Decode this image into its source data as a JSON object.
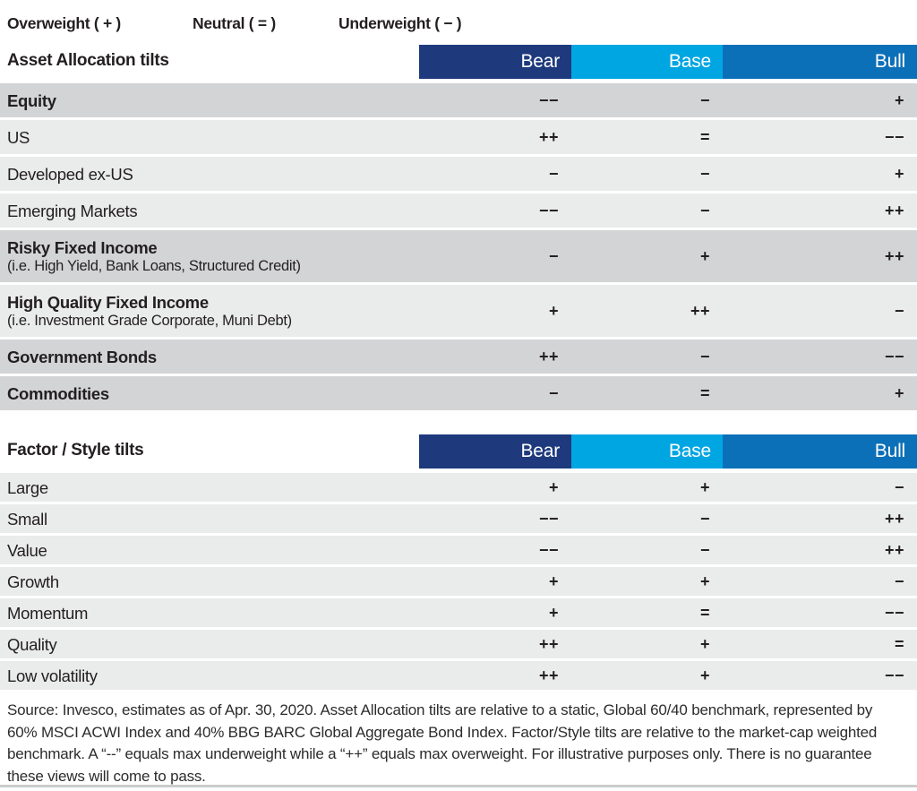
{
  "legend": {
    "overweight": "Overweight ( + )",
    "neutral": "Neutral ( = )",
    "underweight": "Underweight ( − )"
  },
  "colors": {
    "bear": "#1e3a7d",
    "base": "#00a6e2",
    "bull": "#0c70b8",
    "row_dark": "#d3d4d6",
    "row_light": "#eaebeb",
    "header_text": "#ffffff",
    "body_text": "#231f20"
  },
  "tables": [
    {
      "title": "Asset Allocation tilts",
      "columns": [
        "Bear",
        "Base",
        "Bull"
      ],
      "rows": [
        {
          "label": "Equity",
          "sub": "",
          "bold": true,
          "shade": "dark",
          "values": [
            "−−",
            "−",
            "+"
          ]
        },
        {
          "label": "US",
          "sub": "",
          "bold": false,
          "shade": "light",
          "values": [
            "++",
            "=",
            "−−"
          ]
        },
        {
          "label": "Developed ex-US",
          "sub": "",
          "bold": false,
          "shade": "light",
          "values": [
            "−",
            "−",
            "+"
          ]
        },
        {
          "label": "Emerging Markets",
          "sub": "",
          "bold": false,
          "shade": "light",
          "values": [
            "−−",
            "−",
            "++"
          ]
        },
        {
          "label": "Risky Fixed Income",
          "sub": "(i.e. High Yield, Bank Loans, Structured Credit)",
          "bold": true,
          "shade": "dark",
          "values": [
            "−",
            "+",
            "++"
          ]
        },
        {
          "label": "High Quality Fixed Income",
          "sub": "(i.e. Investment Grade Corporate, Muni Debt)",
          "bold": true,
          "shade": "light",
          "values": [
            "+",
            "++",
            "−"
          ]
        },
        {
          "label": "Government Bonds",
          "sub": "",
          "bold": true,
          "shade": "dark",
          "values": [
            "++",
            "−",
            "−−"
          ]
        },
        {
          "label": "Commodities",
          "sub": "",
          "bold": true,
          "shade": "dark",
          "values": [
            "−",
            "=",
            "+"
          ]
        }
      ]
    },
    {
      "title": "Factor / Style tilts",
      "columns": [
        "Bear",
        "Base",
        "Bull"
      ],
      "rows": [
        {
          "label": "Large",
          "sub": "",
          "bold": false,
          "shade": "light",
          "values": [
            "+",
            "+",
            "−"
          ]
        },
        {
          "label": "Small",
          "sub": "",
          "bold": false,
          "shade": "light",
          "values": [
            "−−",
            "−",
            "++"
          ]
        },
        {
          "label": "Value",
          "sub": "",
          "bold": false,
          "shade": "light",
          "values": [
            "−−",
            "−",
            "++"
          ]
        },
        {
          "label": "Growth",
          "sub": "",
          "bold": false,
          "shade": "light",
          "values": [
            "+",
            "+",
            "−"
          ]
        },
        {
          "label": "Momentum",
          "sub": "",
          "bold": false,
          "shade": "light",
          "values": [
            "+",
            "=",
            "−−"
          ]
        },
        {
          "label": "Quality",
          "sub": "",
          "bold": false,
          "shade": "light",
          "values": [
            "++",
            "+",
            "="
          ]
        },
        {
          "label": "Low volatility",
          "sub": "",
          "bold": false,
          "shade": "light",
          "values": [
            "++",
            "+",
            "−−"
          ]
        }
      ]
    }
  ],
  "source": "Source: Invesco, estimates as of Apr. 30, 2020. Asset Allocation tilts are relative to a static, Global 60/40 benchmark, represented by 60% MSCI ACWI Index and 40% BBG BARC Global Aggregate Bond Index. Factor/Style tilts are relative to the market-cap weighted benchmark. A “--” equals max underweight while a “++” equals max overweight. For illustrative purposes only. There is no guarantee these views will come to pass."
}
